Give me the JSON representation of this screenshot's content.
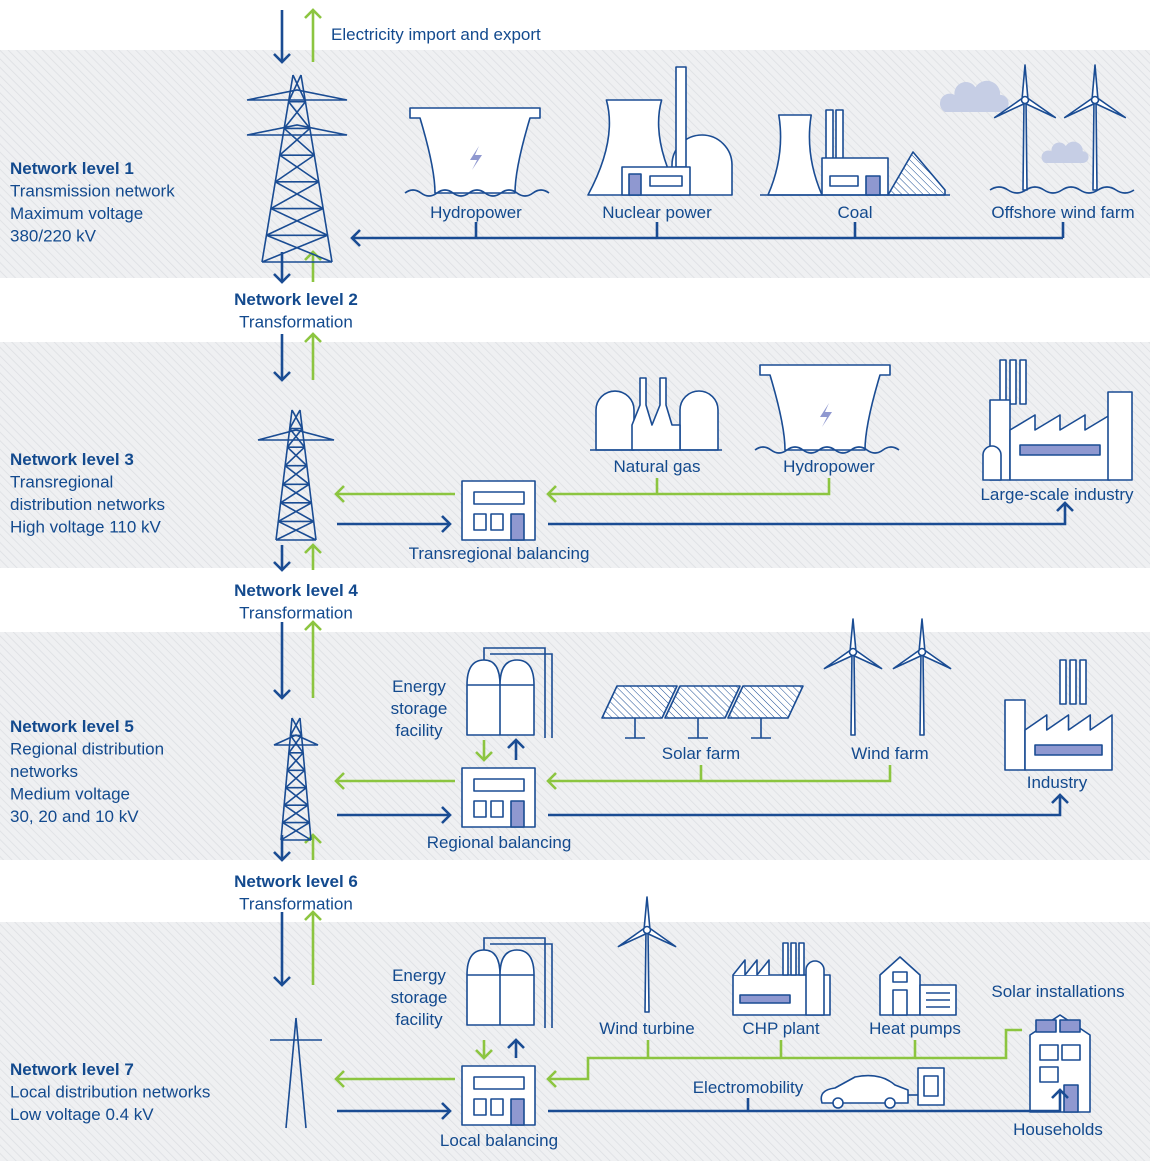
{
  "header": {
    "label": "Electricity import and export"
  },
  "levels": [
    {
      "title": "Network level 1",
      "lines": [
        "Transmission network",
        "Maximum voltage",
        "380/220 kV"
      ]
    },
    {
      "title": "Network level 2",
      "lines": [
        "Transformation"
      ]
    },
    {
      "title": "Network level 3",
      "lines": [
        "Transregional",
        "distribution networks",
        "High voltage 110 kV"
      ]
    },
    {
      "title": "Network level 4",
      "lines": [
        "Transformation"
      ]
    },
    {
      "title": "Network level 5",
      "lines": [
        "Regional distribution",
        "networks",
        "Medium voltage",
        "30, 20 and 10 kV"
      ]
    },
    {
      "title": "Network level 6",
      "lines": [
        "Transformation"
      ]
    },
    {
      "title": "Network level 7",
      "lines": [
        "Local distribution networks",
        "Low voltage 0.4 kV"
      ]
    }
  ],
  "nodes": [
    {
      "label": "Hydropower"
    },
    {
      "label": "Nuclear power"
    },
    {
      "label": "Coal"
    },
    {
      "label": "Offshore wind farm"
    },
    {
      "label": "Natural gas"
    },
    {
      "label": "Hydropower"
    },
    {
      "label": "Large-scale industry"
    },
    {
      "label": "Transregional balancing"
    },
    {
      "lines": [
        "Energy",
        "storage",
        "facility"
      ]
    },
    {
      "label": "Solar farm"
    },
    {
      "label": "Wind farm"
    },
    {
      "label": "Industry"
    },
    {
      "label": "Regional balancing"
    },
    {
      "lines": [
        "Energy",
        "storage",
        "facility"
      ]
    },
    {
      "label": "Wind turbine"
    },
    {
      "label": "CHP plant"
    },
    {
      "label": "Heat pumps"
    },
    {
      "label": "Solar installations"
    },
    {
      "label": "Electromobility"
    },
    {
      "label": "Households"
    },
    {
      "label": "Local balancing"
    }
  ]
}
